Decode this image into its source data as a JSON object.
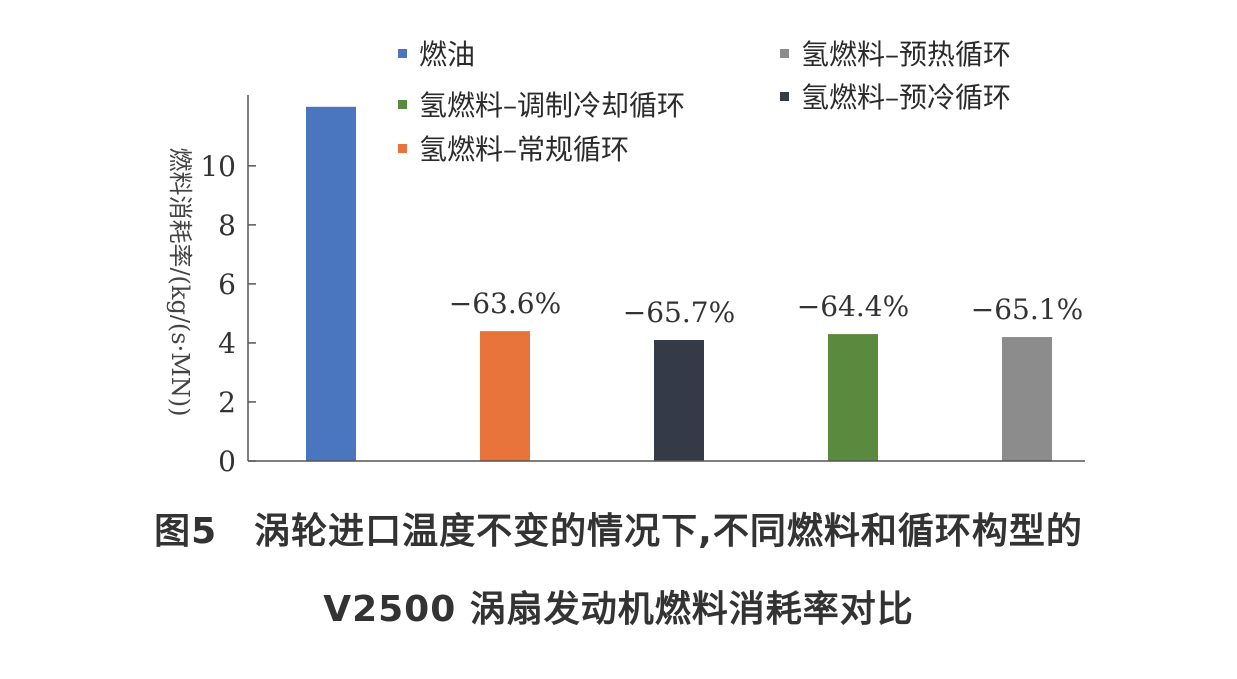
{
  "chart_data": {
    "type": "bar",
    "categories": [
      "燃油",
      "氢燃料–常规循环",
      "氢燃料–预冷循环",
      "氢燃料–调制冷却循环",
      "氢燃料–预热循环"
    ],
    "values": [
      12.0,
      4.4,
      4.1,
      4.3,
      4.2
    ],
    "colors": [
      "#4a76c0",
      "#e8743b",
      "#343a48",
      "#5a8a3e",
      "#8c8c8c"
    ],
    "data_labels": [
      "",
      "−63.6%",
      "−65.7%",
      "−64.4%",
      "−65.1%"
    ],
    "ylabel": "燃料消耗率/(kg/(s·MN))",
    "yticks": [
      0,
      2,
      4,
      6,
      8,
      10
    ],
    "ylim": [
      0,
      12.4
    ],
    "legend": [
      {
        "label": "燃油",
        "color": "#4a76c0"
      },
      {
        "label": "氢燃料–预热循环",
        "color": "#8c8c8c"
      },
      {
        "label": "氢燃料–调制冷却循环",
        "color": "#5a8a3e"
      },
      {
        "label": "氢燃料–预冷循环",
        "color": "#343a48"
      },
      {
        "label": "氢燃料–常规循环",
        "color": "#e8743b"
      }
    ],
    "legend_position": "top",
    "grid": false
  },
  "caption": {
    "line1": "图5　涡轮进口温度不变的情况下,不同燃料和循环构型的",
    "line2": "V2500 涡扇发动机燃料消耗率对比"
  }
}
